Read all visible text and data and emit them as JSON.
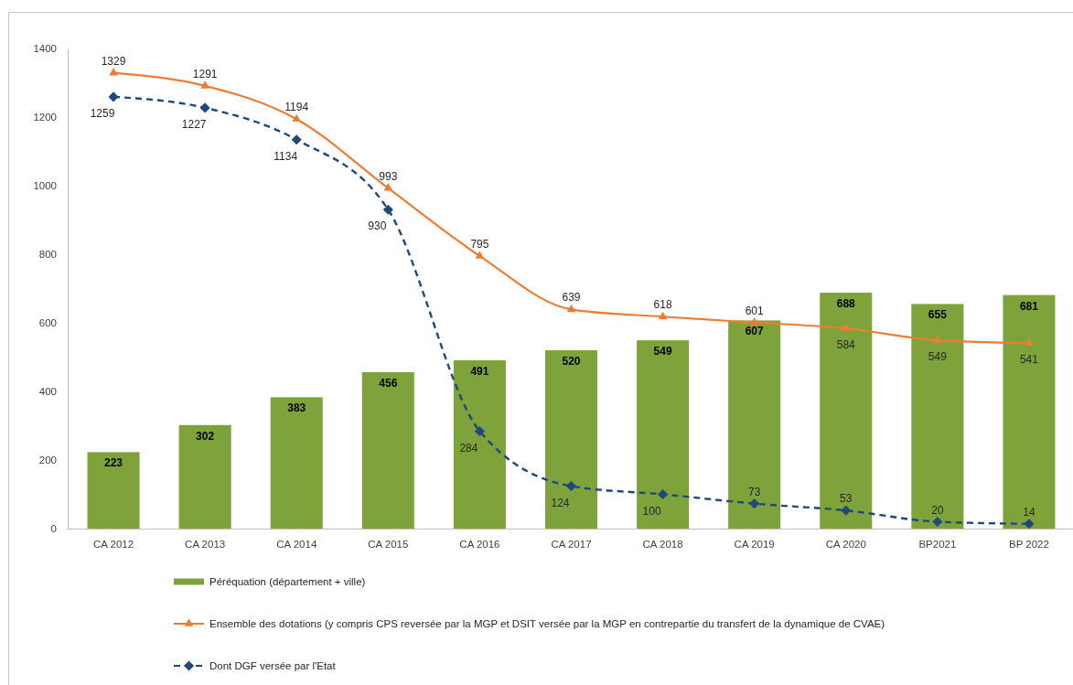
{
  "chart_data": {
    "type": "bar",
    "categories": [
      "CA 2012",
      "CA 2013",
      "CA 2014",
      "CA 2015",
      "CA 2016",
      "CA 2017",
      "CA 2018",
      "CA 2019",
      "CA 2020",
      "BP2021",
      "BP 2022"
    ],
    "series": [
      {
        "name": "Péréquation (département + ville)",
        "color": "#7fa33b",
        "values": [
          223,
          302,
          383,
          456,
          491,
          520,
          549,
          607,
          688,
          655,
          681
        ]
      },
      {
        "name": "Ensemble des dotations (y compris CPS reversée par la MGP et DSIT versée par la MGP en contrepartie du transfert de la dynamique de CVAE)",
        "type": "line",
        "color": "#ed7d31",
        "marker": "triangle",
        "line_style": "solid",
        "values": [
          1329,
          1291,
          1194,
          993,
          795,
          639,
          618,
          601,
          584,
          549,
          541
        ]
      },
      {
        "name": "Dont DGF versée par l'Etat",
        "type": "line",
        "color": "#1f497d",
        "marker": "diamond",
        "line_style": "dashed",
        "values": [
          1259,
          1227,
          1134,
          930,
          284,
          124,
          100,
          73,
          53,
          20,
          14
        ]
      }
    ],
    "ylim": [
      0,
      1400
    ],
    "yticks": [
      0,
      200,
      400,
      600,
      800,
      1000,
      1200,
      1400
    ],
    "legend": "bottom",
    "data_labels": true
  }
}
